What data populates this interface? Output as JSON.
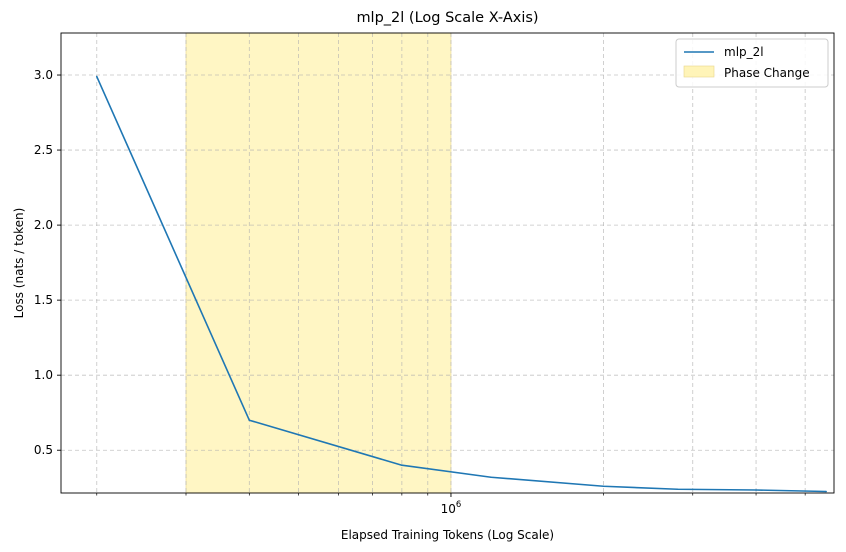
{
  "chart_data": {
    "type": "line",
    "title": "mlp_2l (Log Scale X-Axis)",
    "xlabel": "Elapsed Training Tokens (Log Scale)",
    "ylabel": "Loss (nats / token)",
    "xscale": "log",
    "xlim": [
      170000,
      5700000
    ],
    "ylim": [
      0.215,
      3.28
    ],
    "x_major_ticks": [
      {
        "value": 1000000,
        "base": "10",
        "exp": "6"
      }
    ],
    "x_minor_ticks": [
      200000,
      300000,
      400000,
      500000,
      600000,
      700000,
      800000,
      900000,
      2000000,
      3000000,
      4000000,
      5000000
    ],
    "y_ticks": [
      {
        "value": 0.5,
        "label": "0.5"
      },
      {
        "value": 1.0,
        "label": "1.0"
      },
      {
        "value": 1.5,
        "label": "1.5"
      },
      {
        "value": 2.0,
        "label": "2.0"
      },
      {
        "value": 2.5,
        "label": "2.5"
      },
      {
        "value": 3.0,
        "label": "3.0"
      }
    ],
    "grid": true,
    "legend_position": "top-right",
    "series": [
      {
        "name": "mlp_2l",
        "color": "#1f77b4",
        "x": [
          200000,
          400000,
          800000,
          1200000,
          2000000,
          2800000,
          4000000,
          5500000
        ],
        "y": [
          2.99,
          0.7,
          0.4,
          0.32,
          0.26,
          0.24,
          0.235,
          0.225
        ]
      }
    ],
    "span": {
      "name": "Phase Change",
      "x": [
        300000,
        1000000
      ],
      "color": "#fff3b0"
    }
  }
}
